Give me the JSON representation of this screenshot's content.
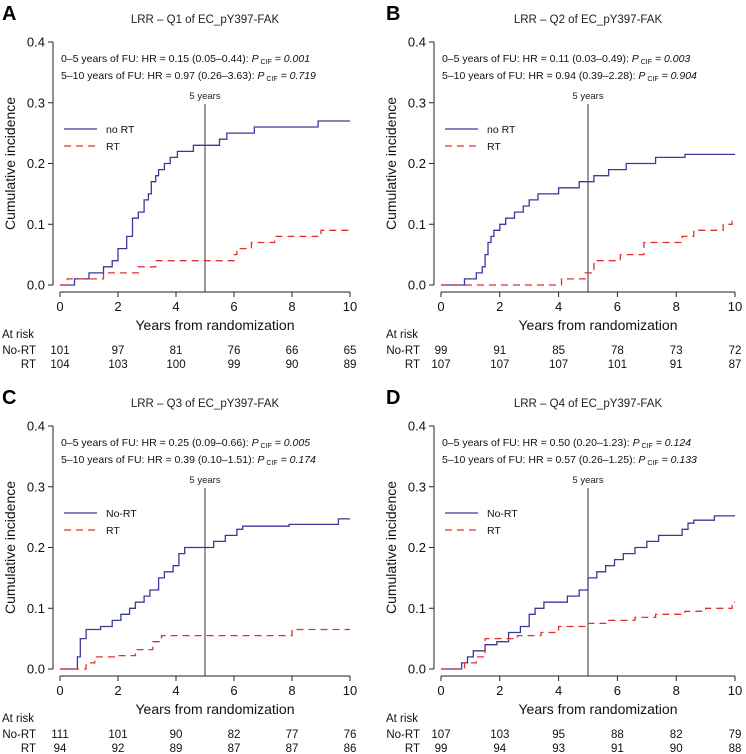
{
  "colors": {
    "no_rt": "#3a3a9a",
    "rt": "#e03030",
    "axis": "#222222"
  },
  "common": {
    "xlabel": "Years from randomization",
    "ylabel": "Cumulative incidence",
    "at_risk_title": "At risk",
    "five_year_label": "5 years",
    "x_ticks": [
      "0",
      "2",
      "4",
      "6",
      "8",
      "10"
    ],
    "y_ticks": [
      "0.0",
      "0.1",
      "0.2",
      "0.3",
      "0.4"
    ]
  },
  "chart_data": [
    {
      "type": "line",
      "panel_letter": "A",
      "title": "LRR – Q1 of EC_pY397-FAK",
      "xlim": [
        0,
        10
      ],
      "ylim": [
        0,
        0.4
      ],
      "stat_line1": {
        "text": "0–5 years of FU: HR = 0.15 (0.05–0.44): ",
        "p": "P",
        "sub": "CIF",
        "val": " = 0.001"
      },
      "stat_line2": {
        "text": "5–10 years of FU: HR = 0.97 (0.26–3.63): ",
        "p": "P",
        "sub": "CIF",
        "val": " = 0.719"
      },
      "legend": [
        "no RT",
        "RT"
      ],
      "risk_times": [
        0,
        2,
        4,
        6,
        8,
        10
      ],
      "risk_rows": [
        {
          "label": "No-RT",
          "values": [
            "101",
            "97",
            "81",
            "76",
            "66",
            "65"
          ]
        },
        {
          "label": "RT",
          "values": [
            "104",
            "103",
            "100",
            "99",
            "90",
            "89"
          ]
        }
      ],
      "series": [
        {
          "name": "no RT",
          "x": [
            0,
            0.5,
            0.5,
            1.0,
            1.0,
            1.5,
            1.5,
            1.8,
            1.8,
            2.0,
            2.0,
            2.3,
            2.3,
            2.5,
            2.5,
            2.7,
            2.7,
            2.9,
            2.9,
            3.05,
            3.05,
            3.15,
            3.15,
            3.3,
            3.3,
            3.4,
            3.4,
            3.6,
            3.6,
            3.8,
            3.8,
            4.05,
            4.05,
            4.25,
            4.25,
            4.6,
            4.6,
            5.5,
            5.5,
            5.75,
            5.75,
            6.7,
            6.7,
            8.9,
            8.9,
            10.0
          ],
          "y": [
            0,
            0,
            0.01,
            0.01,
            0.02,
            0.02,
            0.03,
            0.03,
            0.04,
            0.04,
            0.06,
            0.06,
            0.08,
            0.08,
            0.11,
            0.11,
            0.12,
            0.12,
            0.14,
            0.14,
            0.15,
            0.15,
            0.17,
            0.17,
            0.18,
            0.18,
            0.19,
            0.19,
            0.2,
            0.2,
            0.21,
            0.21,
            0.22,
            0.22,
            0.22,
            0.22,
            0.23,
            0.23,
            0.24,
            0.24,
            0.25,
            0.25,
            0.26,
            0.26,
            0.27,
            0.27
          ]
        },
        {
          "name": "RT",
          "x": [
            0,
            0.25,
            0.25,
            1.5,
            1.5,
            2.7,
            2.7,
            3.3,
            3.3,
            3.6,
            3.6,
            6.0,
            6.0,
            6.1,
            6.1,
            6.6,
            6.6,
            7.4,
            7.4,
            8.3,
            8.3,
            9.0,
            9.0,
            10.0
          ],
          "y": [
            0,
            0,
            0.01,
            0.01,
            0.02,
            0.02,
            0.03,
            0.03,
            0.04,
            0.04,
            0.04,
            0.04,
            0.05,
            0.05,
            0.06,
            0.06,
            0.07,
            0.07,
            0.08,
            0.08,
            0.08,
            0.08,
            0.09,
            0.09
          ]
        }
      ]
    },
    {
      "type": "line",
      "panel_letter": "B",
      "title": "LRR – Q2 of EC_pY397-FAK",
      "xlim": [
        0,
        10
      ],
      "ylim": [
        0,
        0.4
      ],
      "stat_line1": {
        "text": "0–5 years of FU: HR = 0.11 (0.03–0.49): ",
        "p": "P",
        "sub": "CIF",
        "val": " = 0.003"
      },
      "stat_line2": {
        "text": "5–10 years of FU: HR = 0.94 (0.39–2.28): ",
        "p": "P",
        "sub": "CIF",
        "val": " = 0.904"
      },
      "legend": [
        "no RT",
        "RT"
      ],
      "risk_times": [
        0,
        2,
        4,
        6,
        8,
        10
      ],
      "risk_rows": [
        {
          "label": "No-RT",
          "values": [
            "99",
            "91",
            "85",
            "78",
            "73",
            "72"
          ]
        },
        {
          "label": "RT",
          "values": [
            "107",
            "107",
            "107",
            "101",
            "91",
            "87"
          ]
        }
      ],
      "series": [
        {
          "name": "no RT",
          "x": [
            0,
            0.8,
            0.8,
            1.2,
            1.2,
            1.4,
            1.4,
            1.5,
            1.5,
            1.6,
            1.6,
            1.7,
            1.7,
            1.8,
            1.8,
            2.0,
            2.0,
            2.2,
            2.2,
            2.5,
            2.5,
            2.8,
            2.8,
            3.0,
            3.0,
            3.3,
            3.3,
            3.6,
            3.6,
            4.0,
            4.0,
            4.7,
            4.7,
            5.2,
            5.2,
            5.7,
            5.7,
            6.3,
            6.3,
            7.3,
            7.3,
            8.3,
            8.3,
            10.0
          ],
          "y": [
            0,
            0,
            0.01,
            0.01,
            0.02,
            0.02,
            0.03,
            0.03,
            0.05,
            0.05,
            0.07,
            0.07,
            0.08,
            0.08,
            0.09,
            0.09,
            0.1,
            0.1,
            0.11,
            0.11,
            0.12,
            0.12,
            0.13,
            0.13,
            0.14,
            0.14,
            0.15,
            0.15,
            0.15,
            0.15,
            0.16,
            0.16,
            0.17,
            0.17,
            0.18,
            0.18,
            0.19,
            0.19,
            0.2,
            0.2,
            0.21,
            0.21,
            0.215,
            0.215
          ]
        },
        {
          "name": "RT",
          "x": [
            0,
            4.1,
            4.1,
            4.9,
            4.9,
            5.2,
            5.2,
            6.1,
            6.1,
            6.9,
            6.9,
            7.1,
            7.1,
            8.2,
            8.2,
            8.6,
            8.6,
            9.6,
            9.6,
            9.9,
            9.9,
            10.0
          ],
          "y": [
            0,
            0,
            0.01,
            0.01,
            0.02,
            0.02,
            0.04,
            0.04,
            0.05,
            0.05,
            0.07,
            0.07,
            0.07,
            0.07,
            0.08,
            0.08,
            0.09,
            0.09,
            0.1,
            0.1,
            0.105,
            0.105
          ]
        }
      ]
    },
    {
      "type": "line",
      "panel_letter": "C",
      "title": "LRR – Q3 of EC_pY397-FAK",
      "xlim": [
        0,
        10
      ],
      "ylim": [
        0,
        0.4
      ],
      "stat_line1": {
        "text": "0–5 years of FU: HR = 0.25 (0.09–0.66): ",
        "p": "P",
        "sub": "CIF",
        "val": " = 0.005"
      },
      "stat_line2": {
        "text": "5–10 years of FU: HR = 0.39 (0.10–1.51): ",
        "p": "P",
        "sub": "CIF",
        "val": " = 0.174"
      },
      "legend": [
        "No-RT",
        "RT"
      ],
      "risk_times": [
        0,
        2,
        4,
        6,
        8,
        10
      ],
      "risk_rows": [
        {
          "label": "No-RT",
          "values": [
            "111",
            "101",
            "90",
            "82",
            "77",
            "76"
          ]
        },
        {
          "label": "RT",
          "values": [
            "94",
            "92",
            "89",
            "87",
            "87",
            "86"
          ]
        }
      ],
      "series": [
        {
          "name": "No-RT",
          "x": [
            0,
            0.6,
            0.6,
            0.7,
            0.7,
            0.9,
            0.9,
            1.4,
            1.4,
            1.8,
            1.8,
            2.1,
            2.1,
            2.4,
            2.4,
            2.6,
            2.6,
            2.9,
            2.9,
            3.1,
            3.1,
            3.4,
            3.4,
            3.6,
            3.6,
            3.9,
            3.9,
            4.1,
            4.1,
            4.3,
            4.3,
            5.3,
            5.3,
            5.7,
            5.7,
            6.1,
            6.1,
            6.3,
            6.3,
            7.9,
            7.9,
            9.6,
            9.6,
            10.0
          ],
          "y": [
            0,
            0,
            0.02,
            0.02,
            0.05,
            0.05,
            0.065,
            0.065,
            0.07,
            0.07,
            0.08,
            0.08,
            0.09,
            0.09,
            0.1,
            0.1,
            0.11,
            0.11,
            0.12,
            0.12,
            0.13,
            0.13,
            0.15,
            0.15,
            0.16,
            0.16,
            0.17,
            0.17,
            0.19,
            0.19,
            0.2,
            0.2,
            0.21,
            0.21,
            0.22,
            0.22,
            0.23,
            0.23,
            0.235,
            0.235,
            0.238,
            0.238,
            0.247,
            0.247
          ]
        },
        {
          "name": "RT",
          "x": [
            0,
            0.9,
            0.9,
            1.2,
            1.2,
            1.9,
            1.9,
            2.6,
            2.6,
            3.2,
            3.2,
            3.5,
            3.5,
            8.0,
            8.0,
            10.0
          ],
          "y": [
            0,
            0,
            0.01,
            0.01,
            0.02,
            0.02,
            0.022,
            0.022,
            0.032,
            0.032,
            0.045,
            0.045,
            0.055,
            0.055,
            0.065,
            0.065
          ]
        }
      ]
    },
    {
      "type": "line",
      "panel_letter": "D",
      "title": "LRR – Q4 of EC_pY397-FAK",
      "xlim": [
        0,
        10
      ],
      "ylim": [
        0,
        0.4
      ],
      "stat_line1": {
        "text": "0–5 years of FU: HR = 0.50 (0.20–1.23): ",
        "p": "P",
        "sub": "CIF",
        "val": " = 0.124"
      },
      "stat_line2": {
        "text": "5–10 years of FU: HR = 0.57 (0.26–1.25): ",
        "p": "P",
        "sub": "CIF",
        "val": " = 0.133"
      },
      "legend": [
        "No-RT",
        "RT"
      ],
      "risk_times": [
        0,
        2,
        4,
        6,
        8,
        10
      ],
      "risk_rows": [
        {
          "label": "No-RT",
          "values": [
            "107",
            "103",
            "95",
            "88",
            "82",
            "79"
          ]
        },
        {
          "label": "RT",
          "values": [
            "99",
            "94",
            "93",
            "91",
            "90",
            "88"
          ]
        }
      ],
      "series": [
        {
          "name": "No-RT",
          "x": [
            0,
            0.7,
            0.7,
            0.9,
            0.9,
            1.1,
            1.1,
            1.5,
            1.5,
            1.9,
            1.9,
            2.3,
            2.3,
            2.7,
            2.7,
            3.0,
            3.0,
            3.2,
            3.2,
            3.5,
            3.5,
            4.3,
            4.3,
            4.7,
            4.7,
            5.0,
            5.0,
            5.3,
            5.3,
            5.6,
            5.6,
            5.9,
            5.9,
            6.2,
            6.2,
            6.6,
            6.6,
            7.0,
            7.0,
            7.4,
            7.4,
            8.2,
            8.2,
            8.4,
            8.4,
            8.6,
            8.6,
            9.3,
            9.3,
            10.0
          ],
          "y": [
            0,
            0,
            0.01,
            0.01,
            0.02,
            0.02,
            0.03,
            0.03,
            0.04,
            0.04,
            0.045,
            0.045,
            0.06,
            0.06,
            0.07,
            0.07,
            0.09,
            0.09,
            0.1,
            0.1,
            0.11,
            0.11,
            0.12,
            0.12,
            0.13,
            0.13,
            0.15,
            0.15,
            0.16,
            0.16,
            0.17,
            0.17,
            0.18,
            0.18,
            0.19,
            0.19,
            0.2,
            0.2,
            0.21,
            0.21,
            0.22,
            0.22,
            0.23,
            0.23,
            0.24,
            0.24,
            0.245,
            0.245,
            0.252,
            0.252
          ]
        },
        {
          "name": "RT",
          "x": [
            0,
            0.8,
            0.8,
            1.2,
            1.2,
            1.5,
            1.5,
            2.6,
            2.6,
            3.4,
            3.4,
            4.0,
            4.0,
            5.0,
            5.0,
            5.7,
            5.7,
            6.6,
            6.6,
            7.3,
            7.3,
            8.3,
            8.3,
            9.0,
            9.0,
            9.9,
            9.9,
            10.0
          ],
          "y": [
            0,
            0,
            0.01,
            0.01,
            0.02,
            0.02,
            0.05,
            0.05,
            0.055,
            0.055,
            0.06,
            0.06,
            0.07,
            0.07,
            0.075,
            0.075,
            0.08,
            0.08,
            0.085,
            0.085,
            0.09,
            0.09,
            0.095,
            0.095,
            0.1,
            0.1,
            0.11,
            0.11
          ]
        }
      ]
    }
  ]
}
